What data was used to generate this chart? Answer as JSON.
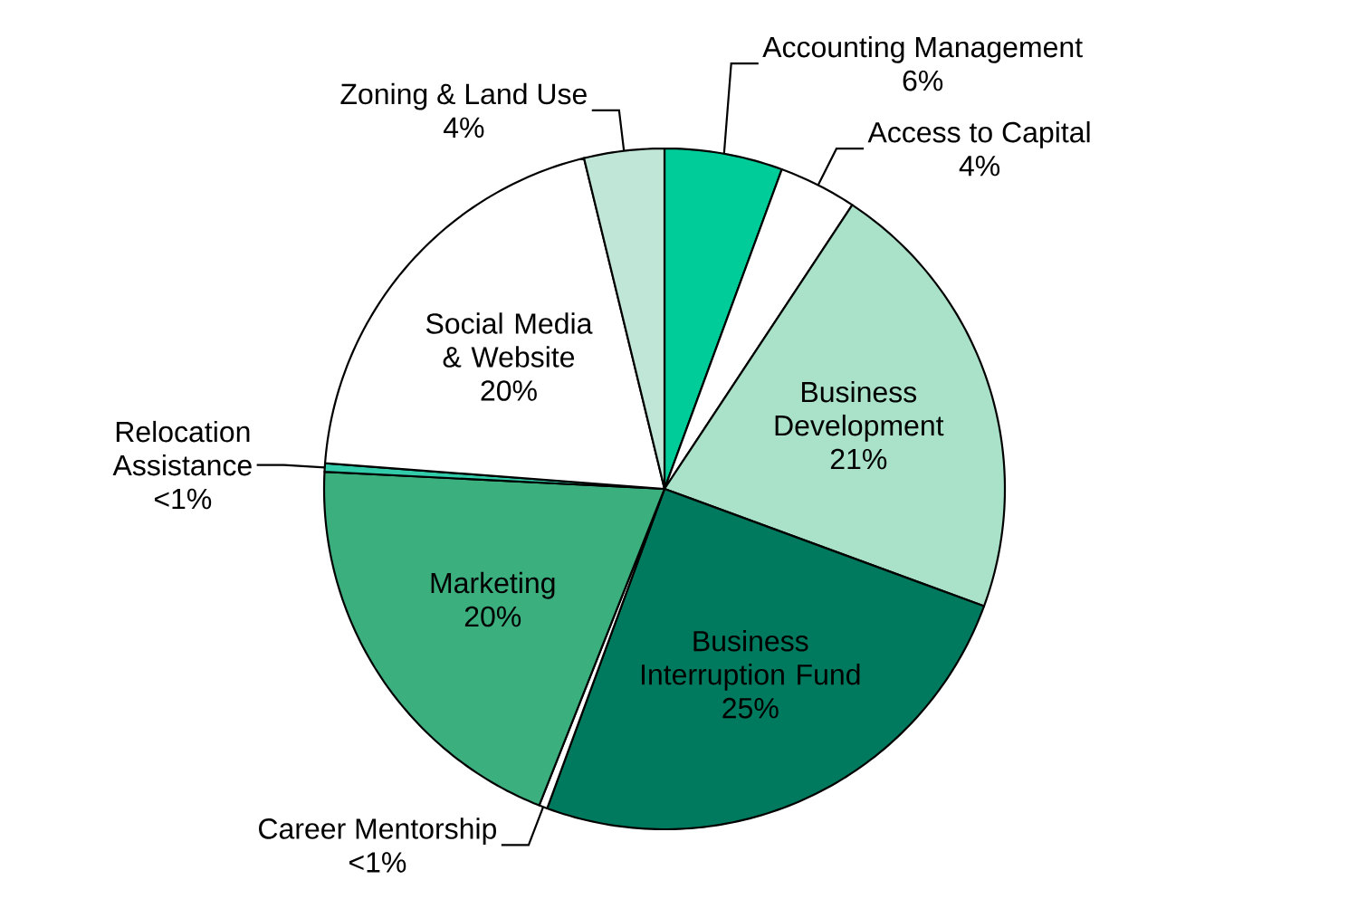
{
  "chart_data": {
    "type": "pie",
    "categories": [
      "Accounting Management",
      "Access to Capital",
      "Business Development",
      "Business Interruption Fund",
      "Career Mentorship",
      "Marketing",
      "Relocation Assistance",
      "Social Media & Website",
      "Zoning & Land Use"
    ],
    "values": [
      5.6,
      3.7,
      21.3,
      25.0,
      0.4,
      19.8,
      0.4,
      20.0,
      3.8
    ],
    "value_labels": [
      "6%",
      "4%",
      "21%",
      "25%",
      "<1%",
      "20%",
      "<1%",
      "20%",
      "4%"
    ],
    "colors": [
      "#00cc99",
      "#ffffff",
      "#a9e2c9",
      "#007a5e",
      "#ffffff",
      "#3caf7f",
      "#33ccaa",
      "#ffffff",
      "#bfe6d6"
    ]
  }
}
